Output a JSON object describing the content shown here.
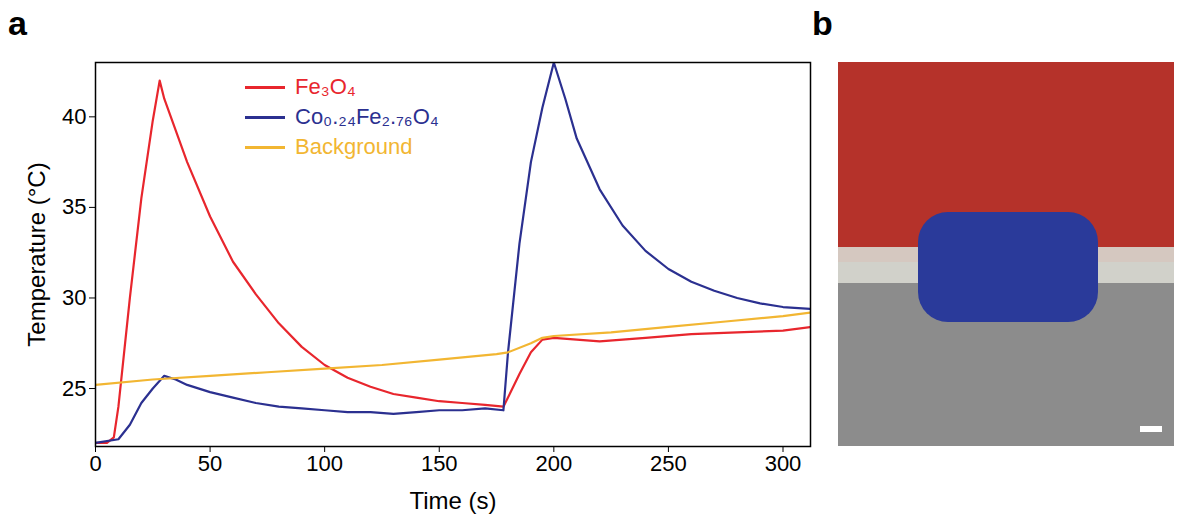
{
  "chart_data": {
    "type": "line",
    "x_label": "Time (s)",
    "y_label": "Temperature (°C)",
    "xlim": [
      0,
      312
    ],
    "xticks": [
      0,
      50,
      100,
      150,
      200,
      250,
      300
    ],
    "ylim": [
      21.8,
      43
    ],
    "yticks": [
      25,
      30,
      35,
      40
    ],
    "legend": "top",
    "series": [
      {
        "name": "Fe₃O₄",
        "color": "#e8262d",
        "x": [
          0,
          5,
          8,
          10,
          15,
          20,
          25,
          28,
          30,
          40,
          50,
          60,
          70,
          80,
          90,
          100,
          110,
          120,
          130,
          140,
          150,
          160,
          170,
          178,
          180,
          185,
          190,
          195,
          200,
          220,
          240,
          260,
          280,
          300,
          312
        ],
        "values": [
          22.0,
          22.0,
          22.3,
          24.0,
          30.0,
          35.5,
          39.8,
          42.0,
          41.0,
          37.5,
          34.5,
          32.0,
          30.2,
          28.6,
          27.3,
          26.3,
          25.6,
          25.1,
          24.7,
          24.5,
          24.3,
          24.2,
          24.1,
          24.0,
          24.5,
          25.8,
          27.0,
          27.7,
          27.8,
          27.6,
          27.8,
          28.0,
          28.1,
          28.2,
          28.4
        ]
      },
      {
        "name": "Co₀.₂₄Fe₂.₇₆O₄",
        "color": "#2b3090",
        "x": [
          0,
          10,
          15,
          20,
          25,
          30,
          35,
          40,
          50,
          60,
          70,
          80,
          90,
          100,
          110,
          120,
          130,
          140,
          150,
          160,
          170,
          178,
          180,
          185,
          190,
          195,
          200,
          205,
          210,
          220,
          230,
          240,
          250,
          260,
          270,
          280,
          290,
          300,
          312
        ],
        "values": [
          22.0,
          22.2,
          23.0,
          24.2,
          25.0,
          25.7,
          25.5,
          25.2,
          24.8,
          24.5,
          24.2,
          24.0,
          23.9,
          23.8,
          23.7,
          23.7,
          23.6,
          23.7,
          23.8,
          23.8,
          23.9,
          23.8,
          27.0,
          33.0,
          37.5,
          40.5,
          43.0,
          41.0,
          38.8,
          36.0,
          34.0,
          32.6,
          31.6,
          30.9,
          30.4,
          30.0,
          29.7,
          29.5,
          29.4
        ]
      },
      {
        "name": "Background",
        "color": "#f2b632",
        "x": [
          0,
          25,
          50,
          75,
          100,
          125,
          150,
          175,
          180,
          190,
          195,
          200,
          225,
          250,
          275,
          300,
          312
        ],
        "values": [
          25.2,
          25.5,
          25.7,
          25.9,
          26.1,
          26.3,
          26.6,
          26.9,
          27.0,
          27.5,
          27.8,
          27.9,
          28.1,
          28.4,
          28.7,
          29.0,
          29.2
        ]
      }
    ]
  },
  "panels": [
    "a",
    "b"
  ]
}
